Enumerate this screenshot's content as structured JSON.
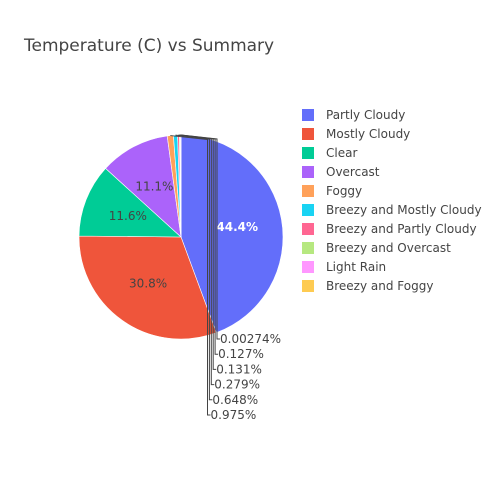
{
  "chart_data": {
    "type": "pie",
    "title": "Temperature (C) vs Summary",
    "slices": [
      {
        "label": "Partly Cloudy",
        "value": 44.4,
        "text": "44.4%",
        "color": "#636efa"
      },
      {
        "label": "Mostly Cloudy",
        "value": 30.8,
        "text": "30.8%",
        "color": "#EF553B"
      },
      {
        "label": "Clear",
        "value": 11.6,
        "text": "11.6%",
        "color": "#00cc96"
      },
      {
        "label": "Overcast",
        "value": 11.1,
        "text": "11.1%",
        "color": "#ab63fa"
      },
      {
        "label": "Foggy",
        "value": 0.975,
        "text": "0.975%",
        "color": "#FFA15A"
      },
      {
        "label": "Breezy and Mostly Cloudy",
        "value": 0.648,
        "text": "0.648%",
        "color": "#19d3f3"
      },
      {
        "label": "Breezy and Partly Cloudy",
        "value": 0.279,
        "text": "0.279%",
        "color": "#FF6692"
      },
      {
        "label": "Breezy and Overcast",
        "value": 0.131,
        "text": "0.131%",
        "color": "#B6E880"
      },
      {
        "label": "Light Rain",
        "value": 0.127,
        "text": "0.127%",
        "color": "#FF97FF"
      },
      {
        "label": "Breezy and Foggy",
        "value": 0.00274,
        "text": "0.00274%",
        "color": "#FECB52"
      }
    ],
    "legend_position": "right",
    "direction": "clockwise",
    "start": "top"
  }
}
